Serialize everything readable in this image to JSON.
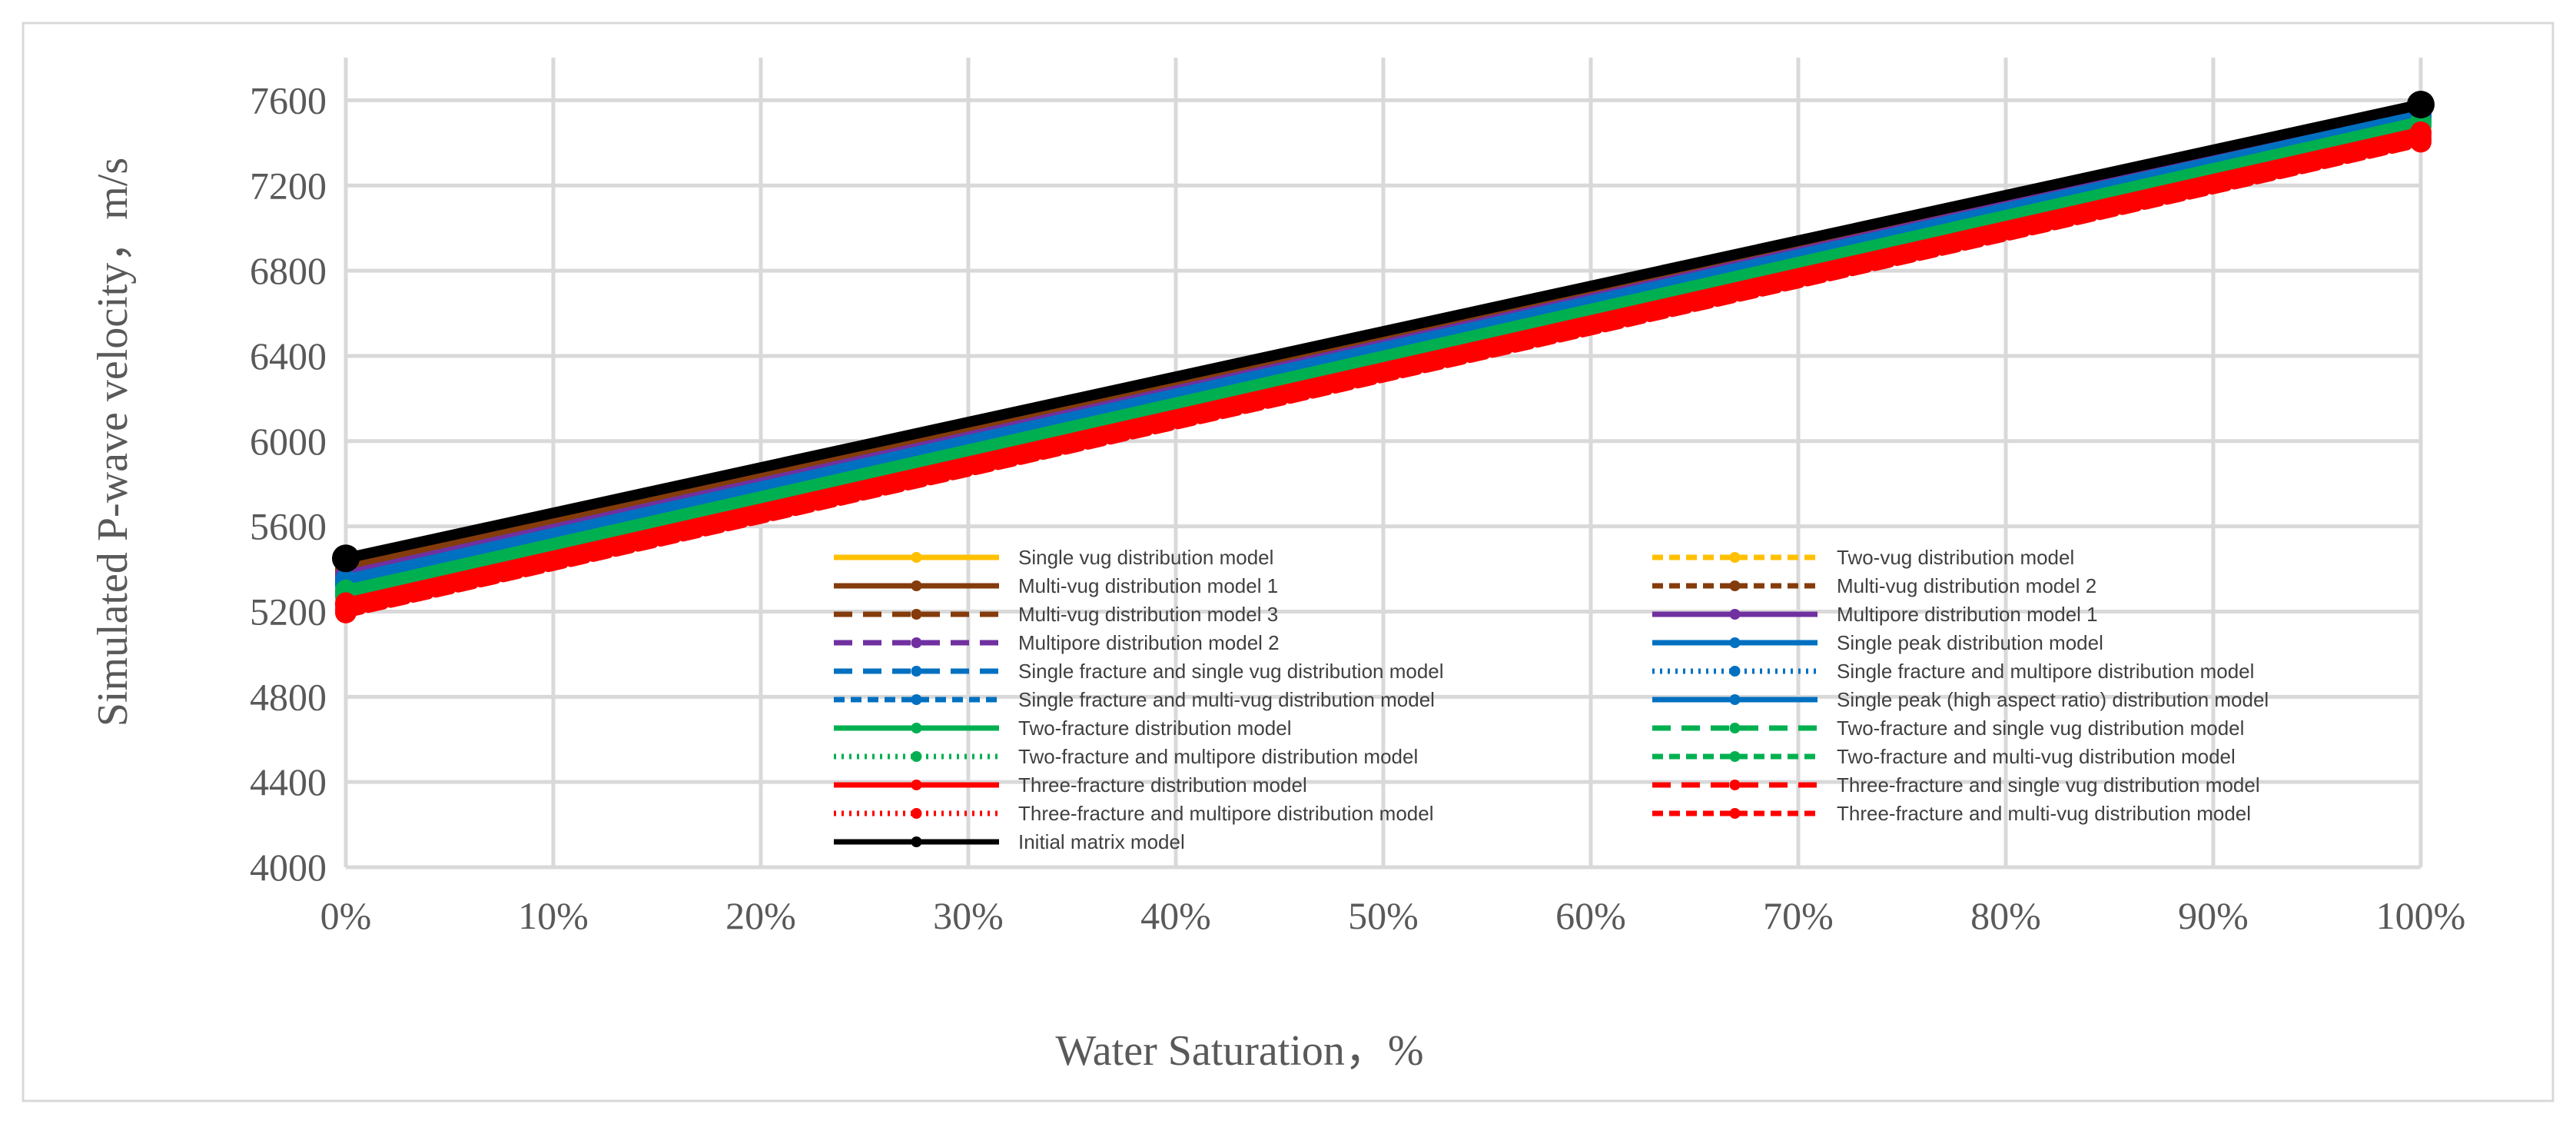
{
  "chart_data": {
    "type": "line",
    "title": "",
    "xlabel": "Water Saturation，%",
    "ylabel": "Simulated P-wave velocity，m/s",
    "x": [
      0,
      100
    ],
    "x_tick_labels": [
      "0%",
      "10%",
      "20%",
      "30%",
      "40%",
      "50%",
      "60%",
      "70%",
      "80%",
      "90%",
      "100%"
    ],
    "xlim": [
      0,
      100
    ],
    "y_tick_labels": [
      "4000",
      "4400",
      "4800",
      "5200",
      "5600",
      "6000",
      "6400",
      "6800",
      "7200",
      "7600"
    ],
    "ylim": [
      4000,
      7800
    ],
    "grid": true,
    "legend_position": "center-bottom",
    "series": [
      {
        "name": "Single vug distribution model",
        "values": [
          5430,
          7560
        ],
        "color": "#FFC000",
        "dash": "solid"
      },
      {
        "name": "Two-vug distribution model",
        "values": [
          5420,
          7555
        ],
        "color": "#FFC000",
        "dash": "dash"
      },
      {
        "name": "Multi-vug distribution model 1",
        "values": [
          5400,
          7550
        ],
        "color": "#843C0C",
        "dash": "solid"
      },
      {
        "name": "Multi-vug distribution model 2",
        "values": [
          5390,
          7545
        ],
        "color": "#843C0C",
        "dash": "dash"
      },
      {
        "name": "Multi-vug distribution model 3",
        "values": [
          5380,
          7540
        ],
        "color": "#843C0C",
        "dash": "longdash"
      },
      {
        "name": "Multipore distribution model  1",
        "values": [
          5370,
          7535
        ],
        "color": "#7030A0",
        "dash": "solid"
      },
      {
        "name": "Multipore distribution model 2",
        "values": [
          5360,
          7530
        ],
        "color": "#7030A0",
        "dash": "longdash"
      },
      {
        "name": "Single peak distribution model",
        "values": [
          5350,
          7530
        ],
        "color": "#0070C0",
        "dash": "solid"
      },
      {
        "name": "Single fracture and single vug distribution model",
        "values": [
          5340,
          7520
        ],
        "color": "#0070C0",
        "dash": "longdash"
      },
      {
        "name": "Single fracture and multipore distribution model",
        "values": [
          5330,
          7515
        ],
        "color": "#0070C0",
        "dash": "dot"
      },
      {
        "name": "Single fracture and multi-vug distribution model",
        "values": [
          5320,
          7510
        ],
        "color": "#0070C0",
        "dash": "dash"
      },
      {
        "name": "Single peak (high aspect ratio) distribution model",
        "values": [
          5340,
          7525
        ],
        "color": "#0070C0",
        "dash": "solid"
      },
      {
        "name": "Two-fracture distribution model",
        "values": [
          5300,
          7500
        ],
        "color": "#00B050",
        "dash": "solid"
      },
      {
        "name": "Two-fracture and single vug distribution model",
        "values": [
          5290,
          7490
        ],
        "color": "#00B050",
        "dash": "longdash"
      },
      {
        "name": "Two-fracture and multipore distribution model",
        "values": [
          5280,
          7485
        ],
        "color": "#00B050",
        "dash": "dot"
      },
      {
        "name": "Two-fracture and multi-vug distribution model",
        "values": [
          5270,
          7480
        ],
        "color": "#00B050",
        "dash": "dash"
      },
      {
        "name": "Three-fracture distribution model",
        "values": [
          5240,
          7450
        ],
        "color": "#FF0000",
        "dash": "solid"
      },
      {
        "name": "Three-fracture and single vug distribution model",
        "values": [
          5230,
          7440
        ],
        "color": "#FF0000",
        "dash": "longdash"
      },
      {
        "name": "Three-fracture and multipore distribution model",
        "values": [
          5210,
          7420
        ],
        "color": "#FF0000",
        "dash": "dot"
      },
      {
        "name": "Three-fracture and multi-vug distribution model",
        "values": [
          5195,
          7405
        ],
        "color": "#FF0000",
        "dash": "dash"
      },
      {
        "name": "Initial matrix model",
        "values": [
          5450,
          7580
        ],
        "color": "#000000",
        "dash": "solid"
      }
    ]
  }
}
